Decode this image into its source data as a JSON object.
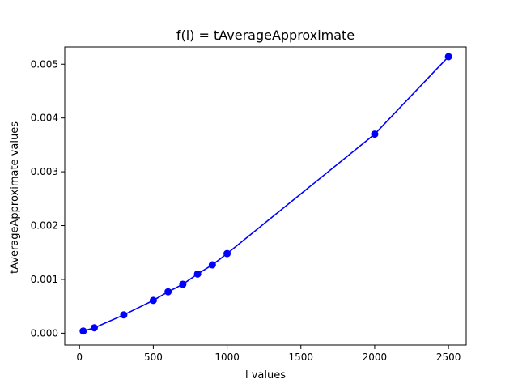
{
  "chart_data": {
    "type": "line",
    "title": "f(l) = tAverageApproximate",
    "xlabel": "l values",
    "ylabel": "tAverageApproximate values",
    "xlim": [
      -100,
      2620
    ],
    "ylim": [
      -0.00022,
      0.00532
    ],
    "xticks": [
      0,
      500,
      1000,
      1500,
      2000,
      2500
    ],
    "xtick_labels": [
      "0",
      "500",
      "1000",
      "1500",
      "2000",
      "2500"
    ],
    "yticks": [
      0.0,
      0.001,
      0.002,
      0.003,
      0.004,
      0.005
    ],
    "ytick_labels": [
      "0.000",
      "0.001",
      "0.002",
      "0.003",
      "0.004",
      "0.005"
    ],
    "grid": false,
    "legend": false,
    "series": [
      {
        "color": "#0000ff",
        "marker": "circle",
        "x": [
          25,
          100,
          300,
          500,
          600,
          700,
          800,
          900,
          1000,
          2000,
          2500
        ],
        "y": [
          4e-05,
          0.0001,
          0.00034,
          0.00061,
          0.00077,
          0.00091,
          0.0011,
          0.00127,
          0.00148,
          0.0037,
          0.00514
        ]
      }
    ]
  }
}
